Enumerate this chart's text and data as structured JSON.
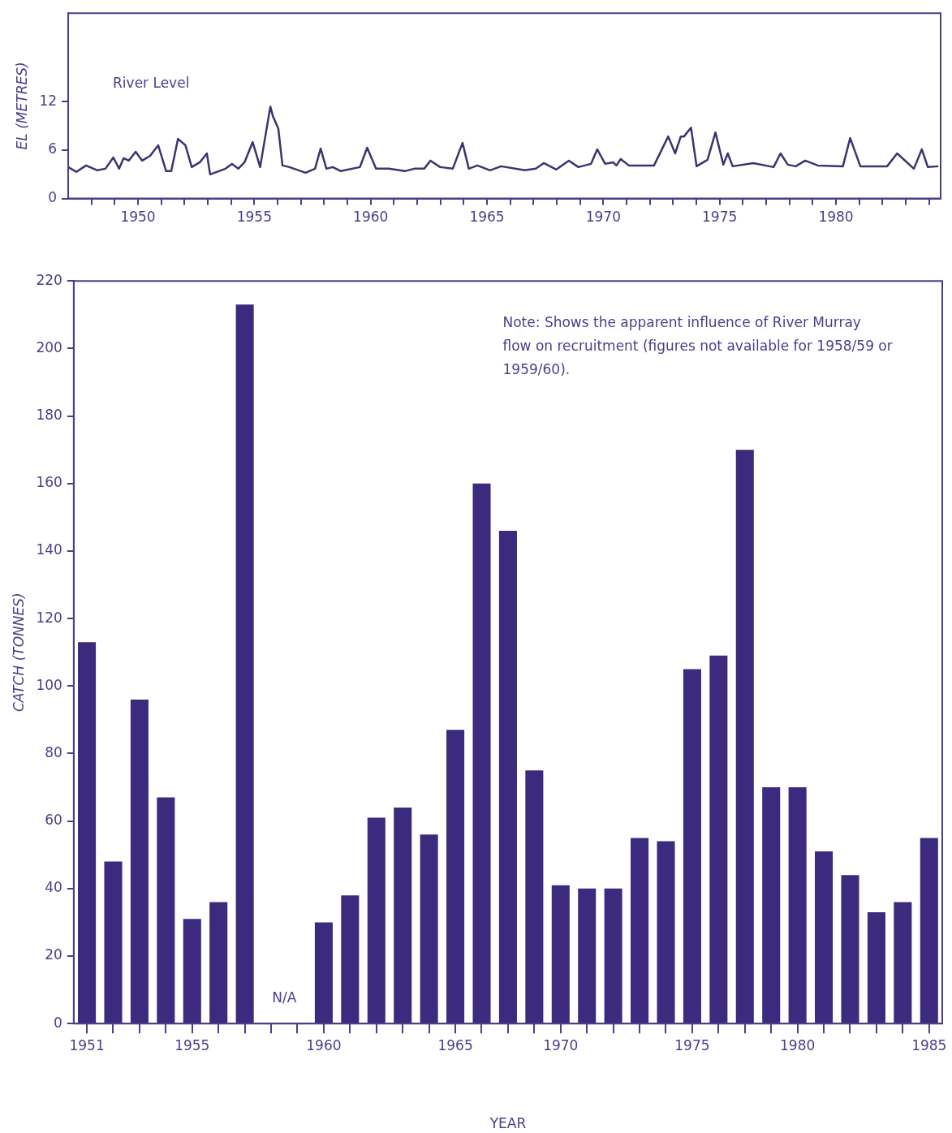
{
  "chart_data": [
    {
      "type": "line",
      "ylabel": "EL (METRES)",
      "xlim": [
        1947,
        1984.5
      ],
      "ylim": [
        0,
        23
      ],
      "yticks": [
        0,
        6,
        12
      ],
      "xticks": [
        {
          "value": 1948,
          "label": null
        },
        {
          "value": 1949,
          "label": null
        },
        1950,
        {
          "value": 1951,
          "label": null
        },
        {
          "value": 1952,
          "label": null
        },
        {
          "value": 1953,
          "label": null
        },
        {
          "value": 1954,
          "label": null
        },
        1955,
        {
          "value": 1956,
          "label": null
        },
        {
          "value": 1957,
          "label": null
        },
        {
          "value": 1958,
          "label": null
        },
        {
          "value": 1959,
          "label": null
        },
        1960,
        {
          "value": 1961,
          "label": null
        },
        {
          "value": 1962,
          "label": null
        },
        {
          "value": 1963,
          "label": null
        },
        {
          "value": 1964,
          "label": null
        },
        1965,
        {
          "value": 1966,
          "label": null
        },
        {
          "value": 1967,
          "label": null
        },
        {
          "value": 1968,
          "label": null
        },
        {
          "value": 1969,
          "label": null
        },
        1970,
        {
          "value": 1971,
          "label": null
        },
        {
          "value": 1972,
          "label": null
        },
        {
          "value": 1973,
          "label": null
        },
        {
          "value": 1974,
          "label": null
        },
        1975,
        {
          "value": 1976,
          "label": null
        },
        {
          "value": 1977,
          "label": null
        },
        {
          "value": 1978,
          "label": null
        },
        {
          "value": 1979,
          "label": null
        },
        1980,
        {
          "value": 1981,
          "label": null
        },
        {
          "value": 1982,
          "label": null
        },
        {
          "value": 1983,
          "label": null
        },
        {
          "value": 1984,
          "label": null
        }
      ],
      "series": [
        {
          "name": "River Level",
          "color": "#3a3570",
          "x": [
            1947.0,
            1947.35,
            1947.77,
            1948.25,
            1948.6,
            1948.94,
            1949.19,
            1949.38,
            1949.6,
            1949.9,
            1950.18,
            1950.52,
            1950.87,
            1951.21,
            1951.43,
            1951.72,
            1952.04,
            1952.31,
            1952.66,
            1952.96,
            1953.1,
            1953.76,
            1954.04,
            1954.31,
            1954.58,
            1954.93,
            1955.25,
            1955.69,
            1955.8,
            1956.03,
            1956.21,
            1956.51,
            1957.2,
            1957.61,
            1957.85,
            1958.1,
            1958.37,
            1958.72,
            1959.54,
            1959.85,
            1960.23,
            1960.78,
            1961.47,
            1961.88,
            1962.3,
            1962.57,
            1962.99,
            1963.53,
            1963.95,
            1964.22,
            1964.59,
            1965.13,
            1965.61,
            1966.63,
            1967.1,
            1967.44,
            1967.98,
            1968.52,
            1968.93,
            1969.47,
            1969.74,
            1970.08,
            1970.42,
            1970.56,
            1970.75,
            1971.1,
            1972.18,
            1972.79,
            1973.09,
            1973.33,
            1973.47,
            1973.77,
            1974.01,
            1974.48,
            1974.82,
            1975.16,
            1975.35,
            1975.56,
            1976.45,
            1977.32,
            1977.62,
            1977.93,
            1978.27,
            1978.68,
            1979.22,
            1980.3,
            1980.61,
            1981.05,
            1982.2,
            1982.63,
            1983.35,
            1983.69,
            1983.95,
            1984.4
          ],
          "values": [
            3.9,
            3.3,
            4.1,
            3.5,
            3.7,
            5.1,
            3.7,
            5.0,
            4.7,
            5.8,
            4.7,
            5.3,
            6.6,
            3.4,
            3.4,
            7.4,
            6.6,
            3.9,
            4.5,
            5.6,
            3.0,
            3.7,
            4.3,
            3.7,
            4.5,
            7.0,
            3.9,
            11.4,
            10.2,
            8.7,
            4.1,
            3.9,
            3.2,
            3.7,
            6.2,
            3.7,
            3.9,
            3.4,
            3.9,
            6.3,
            3.7,
            3.7,
            3.4,
            3.7,
            3.7,
            4.7,
            3.9,
            3.7,
            6.9,
            3.7,
            4.1,
            3.5,
            4.0,
            3.5,
            3.7,
            4.4,
            3.6,
            4.7,
            3.9,
            4.3,
            6.1,
            4.3,
            4.5,
            4.1,
            4.9,
            4.1,
            4.1,
            7.7,
            5.6,
            7.7,
            7.7,
            8.8,
            4.0,
            4.8,
            8.2,
            4.2,
            5.6,
            4.0,
            4.4,
            3.9,
            5.6,
            4.2,
            4.0,
            4.7,
            4.1,
            4.0,
            7.5,
            4.0,
            4.0,
            5.6,
            3.7,
            6.1,
            3.9,
            4.0
          ]
        }
      ]
    },
    {
      "type": "bar",
      "ylabel": "CATCH (TONNES)",
      "xlabel": "YEAR",
      "ylim": [
        0,
        220
      ],
      "yticks": [
        0,
        20,
        40,
        60,
        80,
        100,
        120,
        140,
        160,
        180,
        200,
        220
      ],
      "categories": [
        "1951",
        null,
        null,
        null,
        "1955",
        null,
        null,
        null,
        null,
        "1960",
        null,
        null,
        null,
        null,
        "1965",
        null,
        null,
        null,
        "1970",
        null,
        null,
        null,
        null,
        "1975",
        null,
        null,
        null,
        "1980",
        null,
        null,
        null,
        null,
        "1985"
      ],
      "series": [
        {
          "color": "#3b2a7d",
          "values": [
            113,
            48,
            96,
            67,
            31,
            36,
            213,
            null,
            null,
            30,
            38,
            61,
            64,
            56,
            87,
            160,
            146,
            75,
            41,
            40,
            40,
            55,
            54,
            105,
            109,
            170,
            70,
            70,
            51,
            44,
            33,
            36,
            55
          ]
        }
      ],
      "annotations": [
        "Note: Shows the apparent influence of River Murray flow on recruitment (figures not available for 1958/59 or 1959/60).",
        "N/A"
      ]
    }
  ]
}
